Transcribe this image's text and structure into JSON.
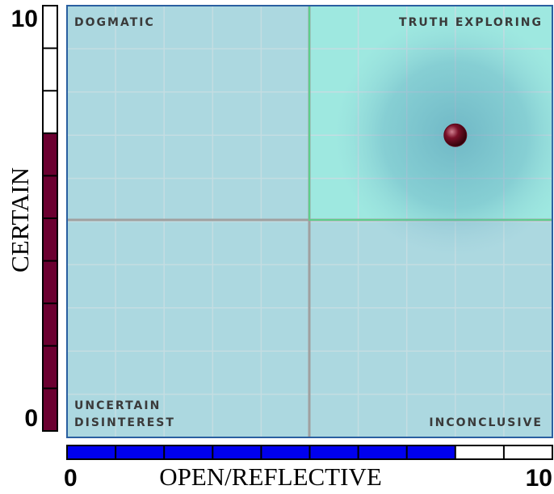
{
  "chart_data": {
    "type": "scatter",
    "x_label": "OPEN/REFLECTIVE",
    "y_label": "CERTAIN",
    "quadrant_labels": {
      "top_left": "DOGMATIC",
      "top_right": "TRUTH EXPLORING",
      "bottom_left": [
        "UNCERTAIN",
        "DISINTEREST"
      ],
      "bottom_right": "INCONCLUSIVE"
    },
    "x": [
      8
    ],
    "y": [
      7
    ],
    "color": "#5a0618",
    "xlim": [
      0,
      10
    ],
    "ylim": [
      0,
      10
    ],
    "xticks": [
      0,
      10
    ],
    "yticks": [
      0,
      10
    ],
    "grid": true,
    "x_gauge_color": "#0000ee",
    "y_gauge_color": "#6b0030"
  }
}
